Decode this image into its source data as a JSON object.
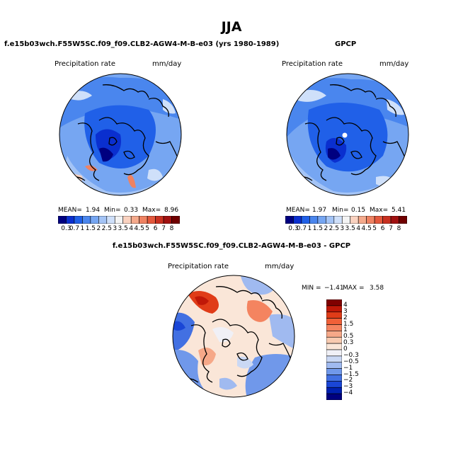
{
  "season": "JJA",
  "panel_model": {
    "title": "f.e15b03wch.F55W5SC.f09_f09.CLB2-AGW4-M-B-e03 (yrs 1980-1989)",
    "field": "Precipitation rate",
    "units": "mm/day",
    "mean_label": "MEAN=",
    "mean": "1.94",
    "min_label": "Min=",
    "min": "0.33",
    "max_label": "Max=",
    "max": "8.96"
  },
  "panel_obs": {
    "title": "GPCP",
    "field": "Precipitation rate",
    "units": "mm/day",
    "mean_label": "MEAN=",
    "mean": "1.97",
    "min_label": "Min=",
    "min": "0.15",
    "max_label": "Max=",
    "max": "5.41"
  },
  "panel_diff": {
    "title": "f.e15b03wch.F55W5SC.f09_f09.CLB2-AGW4-M-B-e03 - GPCP",
    "field": "Precipitation rate",
    "units": "mm/day",
    "min_label": "MIN =",
    "min": "−1.41",
    "max_label": "MAX =",
    "max": "3.58"
  },
  "colorbar_abs": {
    "ticks": [
      "0.3",
      "0.7",
      "1",
      "1.5",
      "2",
      "2.5",
      "3",
      "3.5",
      "4",
      "4.5",
      "5",
      "6",
      "7",
      "8"
    ],
    "colors": [
      "#000080",
      "#0a2fcf",
      "#2060e8",
      "#4a86ee",
      "#76a6f2",
      "#a4c4f6",
      "#cfe0fa",
      "#f4f4f4",
      "#fad2c0",
      "#f5aa8c",
      "#ef8262",
      "#e4583c",
      "#c83020",
      "#a01010",
      "#700000"
    ]
  },
  "colorbar_diff": {
    "ticks": [
      "4",
      "3",
      "2",
      "1.5",
      "1",
      "0.5",
      "0.3",
      "0",
      "−0.3",
      "−0.5",
      "−1",
      "−1.5",
      "−2",
      "−3",
      "−4"
    ],
    "colors": [
      "#800000",
      "#c01808",
      "#e03c18",
      "#f06038",
      "#f48460",
      "#f6a888",
      "#f8cab0",
      "#fae6d8",
      "#f0f0f6",
      "#cad8f4",
      "#a0baf0",
      "#7098ea",
      "#4270e2",
      "#1a46d6",
      "#0020b0",
      "#000080"
    ]
  }
}
